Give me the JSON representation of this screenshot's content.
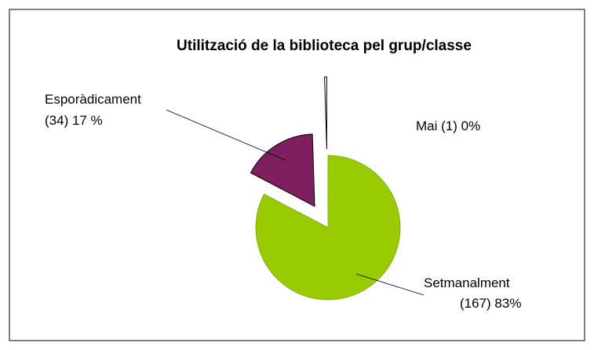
{
  "chart_data": {
    "type": "pie",
    "title": "Utilització de la biblioteca pel grup/classe",
    "categories": [
      "Setmanalment",
      "Esporàdicament",
      "Mai"
    ],
    "values": [
      167,
      34,
      1
    ],
    "value_labels": [
      "(167) 83%",
      "(34) 17 %",
      "(1) 0%"
    ],
    "colors": [
      "#99cc00",
      "#7f1f5f",
      "#ffffff"
    ]
  }
}
